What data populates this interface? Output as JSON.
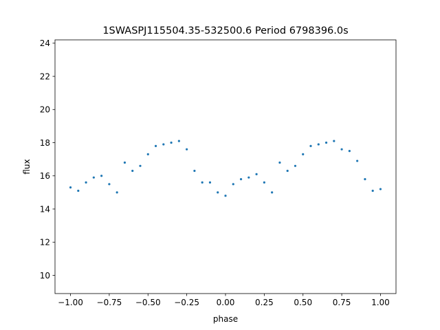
{
  "chart_data": {
    "type": "scatter",
    "title": "1SWASPJ115504.35-532500.6 Period 6798396.0s",
    "xlabel": "phase",
    "ylabel": "flux",
    "xlim": [
      -1.1,
      1.1
    ],
    "ylim": [
      8.9,
      24.2
    ],
    "xticks": [
      -1.0,
      -0.75,
      -0.5,
      -0.25,
      0.0,
      0.25,
      0.5,
      0.75,
      1.0
    ],
    "xtick_labels": [
      "−1.00",
      "−0.75",
      "−0.50",
      "−0.25",
      "0.00",
      "0.25",
      "0.50",
      "0.75",
      "1.00"
    ],
    "yticks": [
      10,
      12,
      14,
      16,
      18,
      20,
      22,
      24
    ],
    "ytick_labels": [
      "10",
      "12",
      "14",
      "16",
      "18",
      "20",
      "22",
      "24"
    ],
    "grid": false,
    "marker_color": "#1f77b4",
    "series": [
      {
        "x": [
          -1.0,
          -0.95,
          -0.9,
          -0.85,
          -0.8,
          -0.75,
          -0.7,
          -0.65,
          -0.6,
          -0.55,
          -0.5,
          -0.45,
          -0.4,
          -0.35,
          -0.3,
          -0.25,
          -0.2,
          -0.15,
          -0.1,
          -0.05,
          0.0,
          0.05,
          0.1,
          0.15,
          0.2,
          0.25,
          0.3,
          0.35,
          0.4,
          0.45,
          0.5,
          0.55,
          0.6,
          0.65,
          0.7,
          0.75,
          0.8,
          0.85,
          0.9,
          0.95,
          1.0
        ],
        "y": [
          15.3,
          15.1,
          15.6,
          15.9,
          16.0,
          15.5,
          15.0,
          16.8,
          16.3,
          16.6,
          17.3,
          17.8,
          17.9,
          18.0,
          18.1,
          17.6,
          16.3,
          15.6,
          15.6,
          15.0,
          14.8,
          15.5,
          15.8,
          15.9,
          16.1,
          15.6,
          15.0,
          16.8,
          16.3,
          16.6,
          17.3,
          17.8,
          17.9,
          18.0,
          18.1,
          17.6,
          17.5,
          16.9,
          15.8,
          15.1,
          15.2
        ]
      }
    ]
  }
}
